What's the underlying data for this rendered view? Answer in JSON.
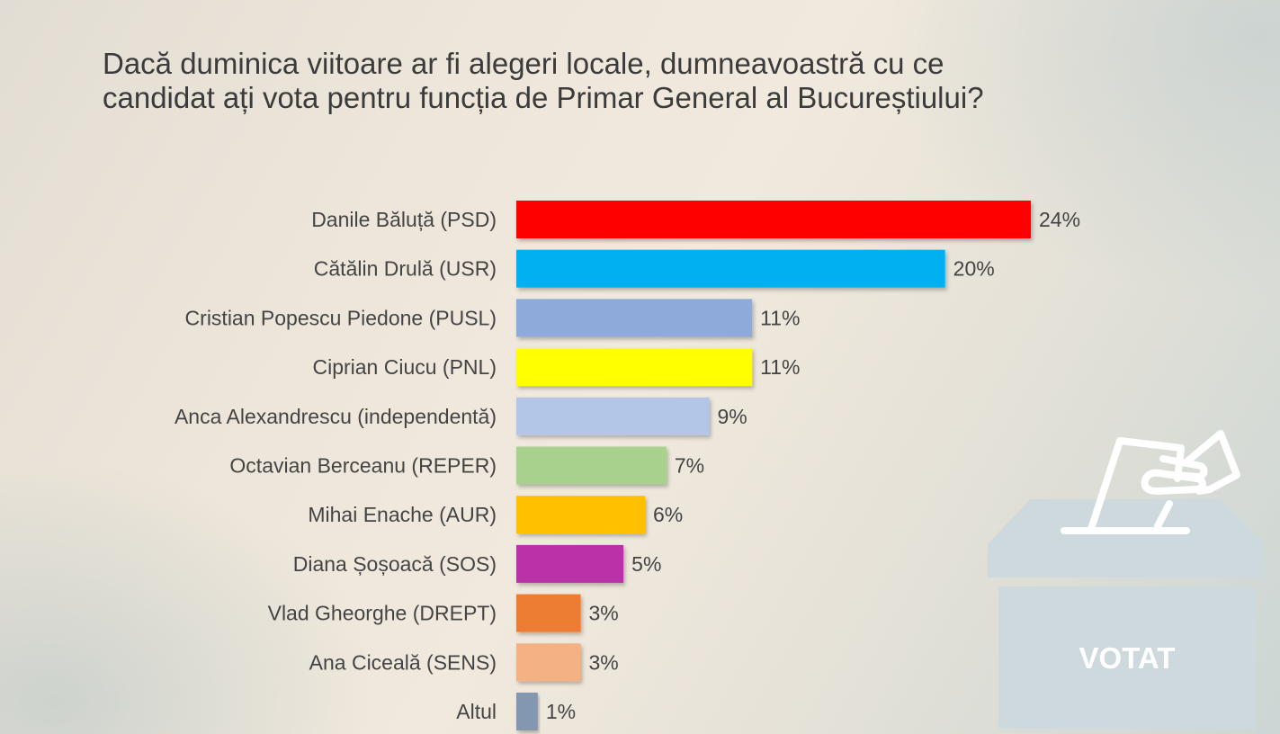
{
  "title_lines": [
    "Dacă duminica viitoare ar fi alegeri locale, dumneavoastră cu ce",
    "candidat ați vota pentru funcția de Primar General al Bucureștiului?"
  ],
  "chart_data": {
    "type": "bar",
    "orientation": "horizontal",
    "title": "Dacă duminica viitoare ar fi alegeri locale, dumneavoastră cu ce candidat ați vota pentru funcția de Primar General al Bucureștiului?",
    "categories": [
      "Danile Băluță (PSD)",
      "Cătălin Drulă (USR)",
      "Cristian Popescu Piedone (PUSL)",
      "Ciprian Ciucu (PNL)",
      "Anca Alexandrescu (independentă)",
      "Octavian Berceanu (REPER)",
      "Mihai Enache (AUR)",
      "Diana Șoșoacă (SOS)",
      "Vlad Gheorghe (DREPT)",
      "Ana Ciceală (SENS)",
      "Altul"
    ],
    "values": [
      24,
      20,
      11,
      11,
      9,
      7,
      6,
      5,
      3,
      3,
      1
    ],
    "value_labels": [
      "24%",
      "20%",
      "11%",
      "11%",
      "9%",
      "7%",
      "6%",
      "5%",
      "3%",
      "3%",
      "1%"
    ],
    "colors": [
      "#ff0000",
      "#00b0f0",
      "#8eaadb",
      "#ffff00",
      "#b4c6e7",
      "#a9d18e",
      "#ffc000",
      "#b931a8",
      "#ed7d31",
      "#f4b183",
      "#8497b0"
    ],
    "unit": "%",
    "xlabel": "",
    "ylabel": "",
    "xlim": [
      0,
      24
    ],
    "grid": false,
    "legend": "none"
  },
  "ballot_icon": {
    "name": "ballot-box-icon",
    "label": "VOTAT"
  }
}
